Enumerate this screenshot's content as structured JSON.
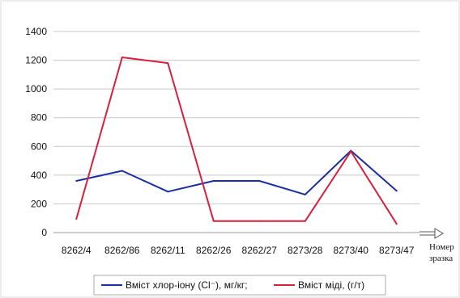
{
  "chart_data": {
    "type": "line",
    "title": "",
    "xlabel": "",
    "ylabel": "",
    "ylim": [
      0,
      1400
    ],
    "yticks": [
      0,
      200,
      400,
      600,
      800,
      1000,
      1200,
      1400
    ],
    "grid": true,
    "legend_position": "bottom",
    "categories": [
      "8262/4",
      "8262/86",
      "8262/11",
      "8262/26",
      "8262/27",
      "8273/28",
      "8273/40",
      "8273/47"
    ],
    "series": [
      {
        "name": "Вміст хлор-іону (Cl⁻), мг/кг;",
        "color": "#1a2fa0",
        "values": [
          360,
          430,
          285,
          360,
          360,
          265,
          570,
          290
        ]
      },
      {
        "name": "Вміст міді, (г/т)",
        "color": "#d81f3c",
        "values": [
          95,
          1220,
          1180,
          80,
          80,
          80,
          565,
          60
        ]
      }
    ],
    "axis_note": [
      "Номер",
      "зразка"
    ]
  }
}
